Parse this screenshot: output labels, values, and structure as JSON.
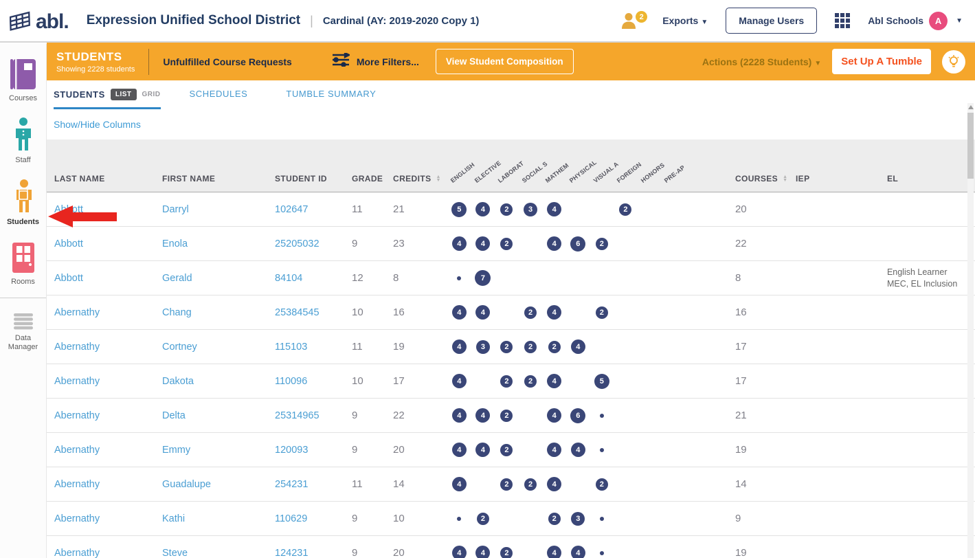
{
  "header": {
    "logo_text": "abl.",
    "district": "Expression Unified School District",
    "separator": "|",
    "school": "Cardinal (AY: 2019-2020 Copy 1)",
    "users_badge": "2",
    "exports_label": "Exports",
    "manage_users_label": "Manage Users",
    "account_name": "Abl Schools",
    "avatar_letter": "A"
  },
  "sidebar": {
    "items": [
      {
        "label": "Courses",
        "icon": "book-icon",
        "color": "#8E5BAA",
        "active": false
      },
      {
        "label": "Staff",
        "icon": "person-icon",
        "color": "#2AA7A7",
        "active": false
      },
      {
        "label": "Students",
        "icon": "student-icon",
        "color": "#F0A336",
        "active": true
      },
      {
        "label": "Rooms",
        "icon": "door-icon",
        "color": "#EE6475",
        "active": false
      },
      {
        "label": "Data Manager",
        "icon": "database-icon",
        "color": "#BFBFBF",
        "active": false
      }
    ],
    "help_label": "?"
  },
  "action_bar": {
    "title": "STUDENTS",
    "subtitle": "Showing 2228 students",
    "unfulfilled_label": "Unfulfilled Course Requests",
    "more_filters_label": "More Filters...",
    "view_composition_label": "View Student Composition",
    "actions_label": "Actions (2228 Students)",
    "tumble_label": "Set Up A Tumble"
  },
  "tabs": {
    "students": "STUDENTS",
    "list": "LIST",
    "grid": "GRID",
    "schedules": "SCHEDULES",
    "tumble_summary": "TUMBLE SUMMARY"
  },
  "toolbar": {
    "show_hide_columns": "Show/Hide Columns"
  },
  "table": {
    "columns": [
      "LAST NAME",
      "FIRST NAME",
      "STUDENT ID",
      "GRADE",
      "CREDITS"
    ],
    "subject_columns": [
      "ENGLISH",
      "ELECTIVE",
      "LABORAT",
      "SOCIAL S",
      "MATHEM",
      "PHYSICAL",
      "VISUAL A",
      "FOREIGN",
      "HONORS",
      "PRE-AP"
    ],
    "subject_keys": [
      "english",
      "elective",
      "laboratory",
      "social-studies",
      "mathematics",
      "physical-education",
      "visual-arts",
      "foreign-language",
      "honors",
      "pre-ap"
    ],
    "tail_columns": [
      "COURSES",
      "IEP",
      "EL"
    ],
    "rows": [
      {
        "last": "Abbott",
        "first": "Darryl",
        "id": "102647",
        "grade": "11",
        "credits": "21",
        "subjects": [
          5,
          4,
          2,
          3,
          4,
          null,
          null,
          2,
          null,
          null
        ],
        "courses": "20",
        "iep": "",
        "el": []
      },
      {
        "last": "Abbott",
        "first": "Enola",
        "id": "25205032",
        "grade": "9",
        "credits": "23",
        "subjects": [
          4,
          4,
          2,
          null,
          4,
          6,
          2,
          null,
          null,
          null
        ],
        "courses": "22",
        "iep": "",
        "el": []
      },
      {
        "last": "Abbott",
        "first": "Gerald",
        "id": "84104",
        "grade": "12",
        "credits": "8",
        "subjects": [
          "dot",
          7,
          null,
          null,
          null,
          null,
          null,
          null,
          null,
          null
        ],
        "courses": "8",
        "iep": "",
        "el": [
          "English Learner",
          "MEC, EL Inclusion"
        ]
      },
      {
        "last": "Abernathy",
        "first": "Chang",
        "id": "25384545",
        "grade": "10",
        "credits": "16",
        "subjects": [
          4,
          4,
          null,
          2,
          4,
          null,
          2,
          null,
          null,
          null
        ],
        "courses": "16",
        "iep": "",
        "el": []
      },
      {
        "last": "Abernathy",
        "first": "Cortney",
        "id": "115103",
        "grade": "11",
        "credits": "19",
        "subjects": [
          4,
          3,
          2,
          2,
          2,
          4,
          null,
          null,
          null,
          null
        ],
        "courses": "17",
        "iep": "",
        "el": []
      },
      {
        "last": "Abernathy",
        "first": "Dakota",
        "id": "110096",
        "grade": "10",
        "credits": "17",
        "subjects": [
          4,
          null,
          2,
          2,
          4,
          null,
          5,
          null,
          null,
          null
        ],
        "courses": "17",
        "iep": "",
        "el": []
      },
      {
        "last": "Abernathy",
        "first": "Delta",
        "id": "25314965",
        "grade": "9",
        "credits": "22",
        "subjects": [
          4,
          4,
          2,
          null,
          4,
          6,
          "dot",
          null,
          null,
          null
        ],
        "courses": "21",
        "iep": "",
        "el": []
      },
      {
        "last": "Abernathy",
        "first": "Emmy",
        "id": "120093",
        "grade": "9",
        "credits": "20",
        "subjects": [
          4,
          4,
          2,
          null,
          4,
          4,
          "dot",
          null,
          null,
          null
        ],
        "courses": "19",
        "iep": "",
        "el": []
      },
      {
        "last": "Abernathy",
        "first": "Guadalupe",
        "id": "254231",
        "grade": "11",
        "credits": "14",
        "subjects": [
          4,
          null,
          2,
          2,
          4,
          null,
          2,
          null,
          null,
          null
        ],
        "courses": "14",
        "iep": "",
        "el": []
      },
      {
        "last": "Abernathy",
        "first": "Kathi",
        "id": "110629",
        "grade": "9",
        "credits": "10",
        "subjects": [
          "dot",
          2,
          null,
          null,
          2,
          3,
          "dot",
          null,
          null,
          null
        ],
        "courses": "9",
        "iep": "",
        "el": []
      },
      {
        "last": "Abernathy",
        "first": "Steve",
        "id": "124231",
        "grade": "9",
        "credits": "20",
        "subjects": [
          4,
          4,
          2,
          null,
          4,
          4,
          "dot",
          null,
          null,
          null
        ],
        "courses": "19",
        "iep": "",
        "el": []
      }
    ]
  },
  "annotation": {
    "shape": "arrow-left",
    "color": "#E8251F"
  },
  "colors": {
    "accent_orange": "#F5A62B",
    "navy": "#2C3E64",
    "link_blue": "#4A9ED3",
    "badge_navy": "#3A4677",
    "avatar_pink": "#E84C7D"
  }
}
